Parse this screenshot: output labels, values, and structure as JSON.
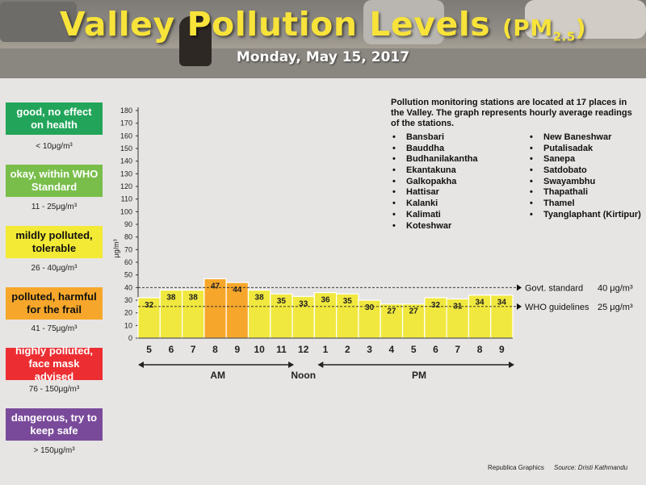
{
  "header": {
    "title": "Valley Pollution Levels",
    "pm": "(PM",
    "pm_sub": "2.5",
    "pm_close": ")",
    "date": "Monday, May 15, 2017"
  },
  "legend": [
    {
      "label": "good, no effect on health",
      "range": "< 10μg/m³",
      "color": "#22a55a"
    },
    {
      "label": "okay, within WHO Standard",
      "range": "11 - 25μg/m³",
      "color": "#79be4b"
    },
    {
      "label": "mildly polluted, tolerable",
      "range": "26 - 40μg/m³",
      "color": "#f3ea35",
      "text_color": "#111111"
    },
    {
      "label": "polluted, harmful for the frail",
      "range": "41 - 75μg/m³",
      "color": "#f6a72b",
      "text_color": "#111111"
    },
    {
      "label": "highly polluted, face mask advised",
      "range": "76 - 150μg/m³",
      "color": "#ec2e32"
    },
    {
      "label": "dangerous, try to keep safe",
      "range": "> 150μg/m³",
      "color": "#7a4a9a"
    }
  ],
  "info": {
    "text": "Pollution monitoring stations are located at 17 places in the Valley. The graph represents hourly average readings of the stations.",
    "stations_left": [
      "Bansbari",
      "Bauddha",
      "Budhanilakantha",
      "Ekantakuna",
      "Galkopakha",
      "Hattisar",
      "Kalanki",
      "Kalimati",
      "Koteshwar"
    ],
    "stations_right": [
      "New Baneshwar",
      "Putalisadak",
      "Sanepa",
      "Satdobato",
      "Swayambhu",
      "Thapathali",
      "Thamel",
      "Tyanglaphant (Kirtipur)"
    ]
  },
  "chart_data": {
    "type": "bar",
    "categories": [
      "5",
      "6",
      "7",
      "8",
      "9",
      "10",
      "11",
      "12",
      "1",
      "2",
      "3",
      "4",
      "5",
      "6",
      "7",
      "8",
      "9"
    ],
    "values": [
      32,
      38,
      38,
      47,
      44,
      38,
      35,
      33,
      36,
      35,
      30,
      27,
      27,
      32,
      31,
      34,
      34
    ],
    "ylabel": "μg/m³",
    "ylim": [
      0,
      180
    ],
    "yticks": [
      0,
      10,
      20,
      30,
      40,
      50,
      60,
      70,
      80,
      90,
      100,
      110,
      120,
      130,
      140,
      150,
      160,
      170,
      180
    ],
    "reference_lines": [
      {
        "label": "Govt. standard",
        "value_label": "40 μg/m³",
        "value": 40
      },
      {
        "label": "WHO guidelines",
        "value_label": "25 μg/m³",
        "value": 25
      }
    ],
    "periods": [
      {
        "label": "AM",
        "from": 0,
        "to": 6
      },
      {
        "label": "Noon",
        "at": 7
      },
      {
        "label": "PM",
        "from": 8,
        "to": 16
      }
    ],
    "bar_colors": {
      "mild": "#f1e83f",
      "polluted": "#f6a72b"
    },
    "grid": false
  },
  "footer": {
    "credit": "Republica Graphics",
    "source": "Source: Dristi Kathmandu"
  }
}
